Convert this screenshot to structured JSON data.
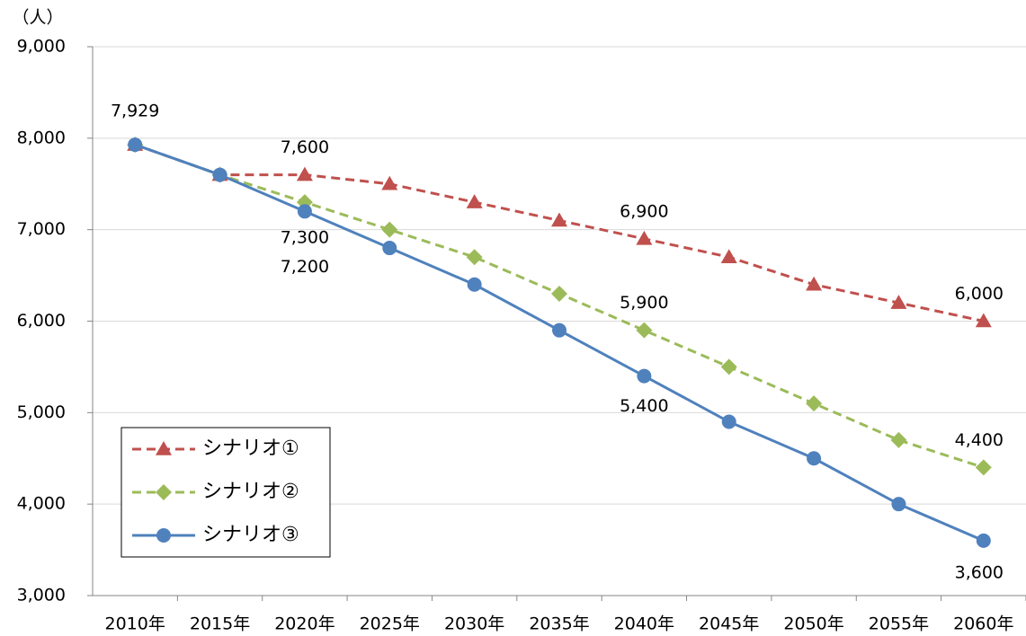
{
  "chart_data": {
    "type": "line",
    "y_label": "（人）",
    "categories": [
      "2010年",
      "2015年",
      "2020年",
      "2025年",
      "2030年",
      "2035年",
      "2040年",
      "2045年",
      "2050年",
      "2055年",
      "2060年"
    ],
    "series": [
      {
        "name": "シナリオ①",
        "color": "#c0504d",
        "line_style": "dashed",
        "marker": "triangle",
        "values": [
          7929,
          7600,
          7600,
          7500,
          7300,
          7100,
          6900,
          6700,
          6400,
          6200,
          6000
        ],
        "value_labels": [
          "7,929",
          null,
          "7,600",
          null,
          null,
          null,
          "6,900",
          null,
          null,
          null,
          "6,000"
        ]
      },
      {
        "name": "シナリオ②",
        "color": "#9bbb59",
        "line_style": "dashed",
        "marker": "diamond",
        "values": [
          7929,
          7600,
          7300,
          7000,
          6700,
          6300,
          5900,
          5500,
          5100,
          4700,
          4400
        ],
        "value_labels": [
          null,
          null,
          "7,300",
          null,
          null,
          null,
          "5,900",
          null,
          null,
          null,
          "4,400"
        ]
      },
      {
        "name": "シナリオ③",
        "color": "#4f81bd",
        "line_style": "solid",
        "marker": "circle",
        "values": [
          7929,
          7600,
          7200,
          6800,
          6400,
          5900,
          5400,
          4900,
          4500,
          4000,
          3600
        ],
        "value_labels": [
          null,
          null,
          "7,200",
          null,
          null,
          null,
          "5,400",
          null,
          null,
          null,
          "3,600"
        ]
      }
    ],
    "ylim": [
      3000,
      9000
    ],
    "yticks": [
      {
        "value": 3000,
        "label": "3,000"
      },
      {
        "value": 4000,
        "label": "4,000"
      },
      {
        "value": 5000,
        "label": "5,000"
      },
      {
        "value": 6000,
        "label": "6,000"
      },
      {
        "value": 7000,
        "label": "7,000"
      },
      {
        "value": 8000,
        "label": "8,000"
      },
      {
        "value": 9000,
        "label": "9,000"
      }
    ],
    "grid": true,
    "legend": "lower-left"
  }
}
